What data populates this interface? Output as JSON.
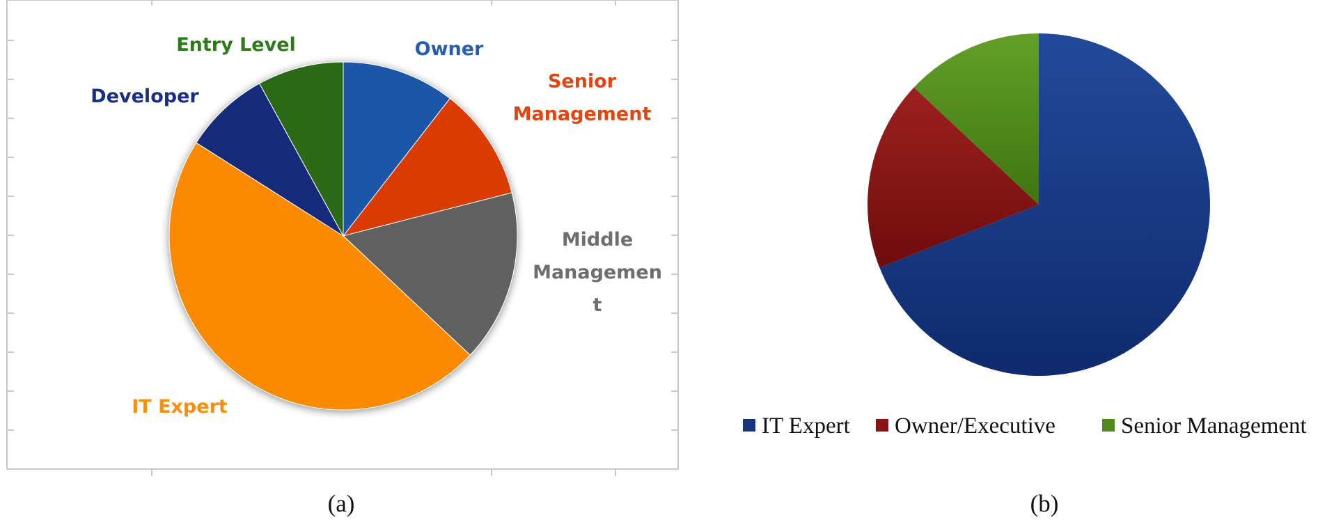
{
  "captions": {
    "a": "(a)",
    "b": "(b)"
  },
  "chart_data": [
    {
      "type": "pie",
      "panel": "a",
      "grid": true,
      "legend": "none (slice labels outside)",
      "slices": [
        {
          "label": "Owner",
          "value": 10.5,
          "color": "#1f56a8"
        },
        {
          "label": "Senior Management",
          "label_lines": [
            "Senior",
            "Management"
          ],
          "value": 10.5,
          "color": "#d93a06"
        },
        {
          "label": "Middle Management",
          "label_lines": [
            "Middle",
            "Managemen",
            "t"
          ],
          "value": 16.0,
          "color": "#606060"
        },
        {
          "label": "IT Expert",
          "value": 47.0,
          "color": "#fb8a02"
        },
        {
          "label": "Developer",
          "value": 8.0,
          "color": "#142b7a"
        },
        {
          "label": "Entry Level",
          "value": 8.0,
          "color": "#2b6b16"
        }
      ],
      "label_colors": {
        "Owner": "#2a5db0",
        "Senior Management": "#e0460f",
        "Middle Management": "#6e6e6e",
        "IT Expert": "#f98d0c",
        "Developer": "#1b2f80",
        "Entry Level": "#2d7a19"
      }
    },
    {
      "type": "pie",
      "panel": "b",
      "legend": "bottom",
      "slices": [
        {
          "label": "IT Expert",
          "value": 69.0,
          "color": "#163480"
        },
        {
          "label": "Owner/Executive",
          "value": 18.0,
          "color": "#8a1414"
        },
        {
          "label": "Senior Management",
          "value": 13.0,
          "color": "#4f8a1c"
        }
      ]
    }
  ]
}
